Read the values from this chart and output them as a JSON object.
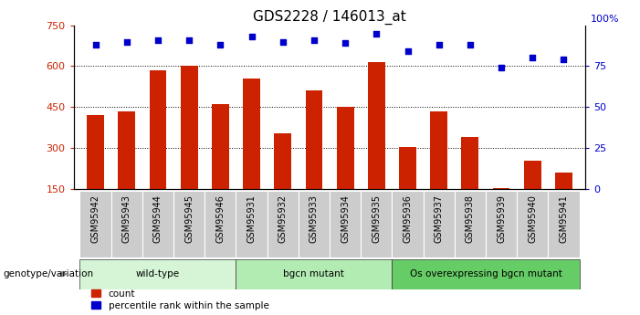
{
  "title": "GDS2228 / 146013_at",
  "categories": [
    "GSM95942",
    "GSM95943",
    "GSM95944",
    "GSM95945",
    "GSM95946",
    "GSM95931",
    "GSM95932",
    "GSM95933",
    "GSM95934",
    "GSM95935",
    "GSM95936",
    "GSM95937",
    "GSM95938",
    "GSM95939",
    "GSM95940",
    "GSM95941"
  ],
  "counts": [
    420,
    435,
    585,
    600,
    460,
    555,
    355,
    510,
    450,
    615,
    305,
    435,
    340,
    155,
    255,
    210
  ],
  "percentile_ranks": [
    88,
    90,
    91,
    91,
    88,
    93,
    90,
    91,
    89,
    95,
    84,
    88,
    88,
    74,
    80,
    79
  ],
  "groups": [
    {
      "label": "wild-type",
      "start": 0,
      "end": 5,
      "color": "#d6f5d6"
    },
    {
      "label": "bgcn mutant",
      "start": 5,
      "end": 10,
      "color": "#b3ecb3"
    },
    {
      "label": "Os overexpressing bgcn mutant",
      "start": 10,
      "end": 16,
      "color": "#66cc66"
    }
  ],
  "ylim_left": [
    150,
    750
  ],
  "ylim_right": [
    0,
    100
  ],
  "yticks_left": [
    150,
    300,
    450,
    600,
    750
  ],
  "yticks_right": [
    0,
    25,
    50,
    75
  ],
  "yticks_right_labels": [
    "0",
    "25",
    "50",
    "75"
  ],
  "bar_color": "#cc2200",
  "scatter_color": "#0000cc",
  "background_color": "#ffffff",
  "bar_width": 0.55,
  "genotype_label": "genotype/variation",
  "legend_count": "count",
  "legend_pct": "percentile rank within the sample",
  "xticklabel_bg": "#cccccc",
  "group_border_color": "#333333"
}
